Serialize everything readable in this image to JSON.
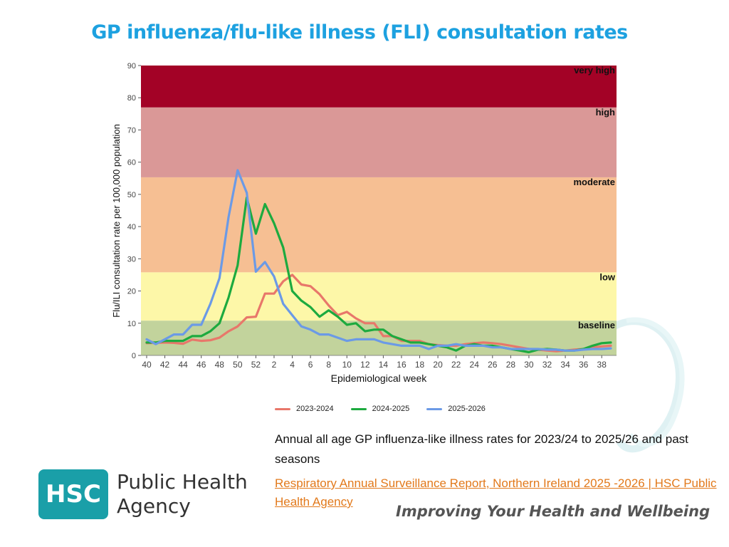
{
  "slide": {
    "title": "GP influenza/flu-like illness (FLI) consultation rates"
  },
  "colors": {
    "title": "#1DA1E0",
    "link": "#E2791B",
    "logo_teal": "#1A9FA8",
    "band_very_high": "#A30226",
    "band_high": "#DA9897",
    "band_moderate": "#F6BF93",
    "band_low": "#FDF7A8",
    "band_baseline": "#C2D39C"
  },
  "chart_data": {
    "type": "line",
    "xlabel": "Epidemiological week",
    "ylabel": "Flu/ILI consultation rate per 100,000 population",
    "ylim": [
      0,
      90
    ],
    "y_ticks": [
      0,
      10,
      20,
      30,
      40,
      50,
      60,
      70,
      80,
      90
    ],
    "x_tick_labels": [
      "40",
      "42",
      "44",
      "46",
      "48",
      "50",
      "52",
      "2",
      "4",
      "6",
      "8",
      "10",
      "12",
      "14",
      "16",
      "18",
      "20",
      "22",
      "24",
      "26",
      "28",
      "30",
      "32",
      "34",
      "36",
      "38"
    ],
    "weeks": [
      40,
      41,
      42,
      43,
      44,
      45,
      46,
      47,
      48,
      49,
      50,
      51,
      52,
      1,
      2,
      3,
      4,
      5,
      6,
      7,
      8,
      9,
      10,
      11,
      12,
      13,
      14,
      15,
      16,
      17,
      18,
      19,
      20,
      21,
      22,
      23,
      24,
      25,
      26,
      27,
      28,
      29,
      30,
      31,
      32,
      33,
      34,
      35,
      36,
      37,
      38,
      39
    ],
    "thresholds": [
      {
        "label": "baseline",
        "from": 0,
        "to": 10.8,
        "color": "#C2D39C"
      },
      {
        "label": "low",
        "from": 10.8,
        "to": 25.8,
        "color": "#FDF7A8"
      },
      {
        "label": "moderate",
        "from": 25.8,
        "to": 55.3,
        "color": "#F6BF93"
      },
      {
        "label": "high",
        "from": 55.3,
        "to": 77.0,
        "color": "#DA9897"
      },
      {
        "label": "very high",
        "from": 77.0,
        "to": 90,
        "color": "#A30226"
      }
    ],
    "series": [
      {
        "name": "2023-2024",
        "color": "#E8776A",
        "values": [
          3.8,
          3.9,
          4.0,
          3.9,
          3.6,
          4.9,
          4.5,
          4.7,
          5.5,
          7.5,
          9.0,
          11.8,
          12.0,
          19.2,
          19.2,
          23.0,
          25.0,
          22.0,
          21.5,
          19.0,
          15.5,
          12.5,
          13.5,
          11.5,
          10.0,
          10.0,
          6.0,
          6.0,
          4.5,
          4.5,
          4.5,
          3.5,
          3.2,
          3.0,
          3.0,
          3.5,
          3.8,
          4.0,
          3.8,
          3.5,
          3.0,
          2.5,
          2.0,
          1.8,
          1.5,
          1.3,
          1.5,
          1.8,
          2.0,
          2.5,
          2.8,
          3.0
        ]
      },
      {
        "name": "2024-2025",
        "color": "#1DAA3F",
        "values": [
          4.0,
          4.0,
          4.5,
          4.5,
          4.5,
          6.0,
          6.0,
          7.5,
          10.0,
          18.0,
          28.0,
          49.0,
          37.8,
          47.0,
          41.0,
          33.5,
          20.0,
          17.0,
          15.0,
          12.0,
          14.0,
          12.0,
          9.5,
          10.0,
          7.5,
          8.0,
          8.0,
          6.0,
          5.0,
          4.0,
          4.0,
          3.5,
          3.0,
          2.5,
          1.5,
          3.0,
          3.5,
          3.0,
          3.0,
          2.5,
          2.0,
          1.5,
          1.0,
          1.8,
          2.0,
          1.8,
          1.5,
          1.5,
          2.0,
          3.0,
          3.8,
          4.0
        ]
      },
      {
        "name": "2025-2026",
        "color": "#6B9AE6",
        "values": [
          5.0,
          3.5,
          5.0,
          6.5,
          6.5,
          9.5,
          9.5,
          16.0,
          24.0,
          43.0,
          57.5,
          50.5,
          26.0,
          29.0,
          24.5,
          16.0,
          12.5,
          9.0,
          8.0,
          6.5,
          6.5,
          5.5,
          4.5,
          5.0,
          5.0,
          5.0,
          4.0,
          3.5,
          3.0,
          3.0,
          3.0,
          2.0,
          3.0,
          3.0,
          3.5,
          3.0,
          3.0,
          3.0,
          2.5,
          2.5,
          2.0,
          2.0,
          2.0,
          2.0,
          1.8,
          1.8,
          1.5,
          1.5,
          1.8,
          2.0,
          2.0,
          2.2
        ]
      }
    ]
  },
  "caption": {
    "text": "Annual all age GP influenza-like illness rates for 2023/24 to 2025/26 and past seasons",
    "link": "Respiratory Annual Surveillance Report, Northern Ireland 2025 -2026 | HSC Public Health Agency"
  },
  "logo": {
    "box_text": "HSC",
    "line1": "Public Health",
    "line2": "Agency"
  },
  "tagline": "Improving Your Health and Wellbeing"
}
